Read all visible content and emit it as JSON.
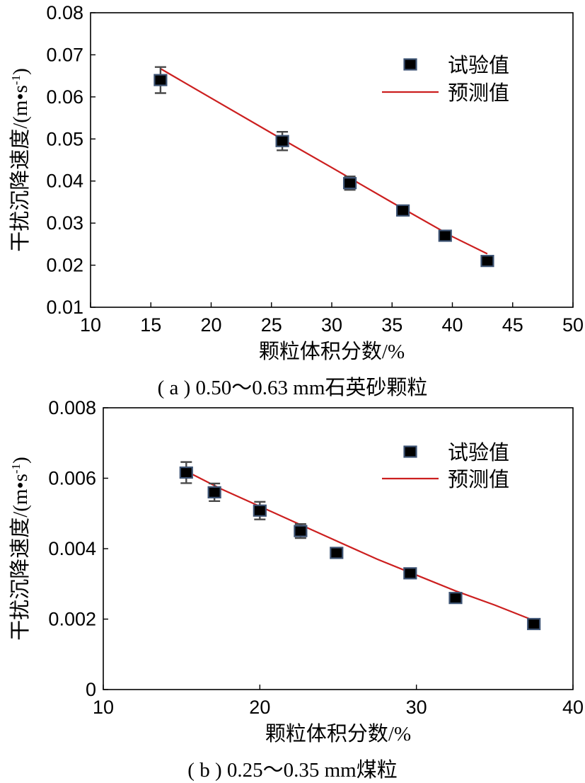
{
  "chart_data": [
    {
      "type": "scatter",
      "caption": "( a ) 0.50～0.63 mm石英砂颗粒",
      "xlabel": "颗粒体积分数/%",
      "ylabel": "干扰沉降速度/(m•s",
      "ylabel_sup": "-1",
      "ylabel_end": ")",
      "xlim": [
        10,
        50
      ],
      "ylim": [
        0.01,
        0.08
      ],
      "xticks": [
        10,
        15,
        20,
        25,
        30,
        35,
        40,
        45,
        50
      ],
      "yticks": [
        0.01,
        0.02,
        0.03,
        0.04,
        0.05,
        0.06,
        0.07,
        0.08
      ],
      "ytick_labels": [
        "0.01",
        "0.02",
        "0.03",
        "0.04",
        "0.05",
        "0.06",
        "0.07",
        "0.08"
      ],
      "legend": {
        "placement": "top-right",
        "marker_label": "试验值",
        "line_label": "预测值"
      },
      "series": [
        {
          "name": "试验值",
          "kind": "marker",
          "points": [
            {
              "x": 15.8,
              "y": 0.064,
              "err": 0.0031
            },
            {
              "x": 25.9,
              "y": 0.0495,
              "err": 0.0022
            },
            {
              "x": 31.5,
              "y": 0.0395,
              "err": 0.0016
            },
            {
              "x": 35.9,
              "y": 0.033,
              "err": 0.001
            },
            {
              "x": 39.4,
              "y": 0.027,
              "err": 0
            },
            {
              "x": 42.9,
              "y": 0.021,
              "err": 0
            }
          ]
        },
        {
          "name": "预测值",
          "kind": "line",
          "color": "#cc1f1f",
          "points": [
            {
              "x": 15.8,
              "y": 0.0667
            },
            {
              "x": 20.0,
              "y": 0.0597
            },
            {
              "x": 25.0,
              "y": 0.0514
            },
            {
              "x": 30.0,
              "y": 0.0432
            },
            {
              "x": 35.0,
              "y": 0.0349
            },
            {
              "x": 40.0,
              "y": 0.0268
            },
            {
              "x": 42.9,
              "y": 0.0227
            }
          ]
        }
      ]
    },
    {
      "type": "scatter",
      "caption": "( b ) 0.25～0.35 mm煤粒",
      "xlabel": "颗粒体积分数/%",
      "ylabel": "干扰沉降速度/(m•s",
      "ylabel_sup": "-1",
      "ylabel_end": ")",
      "xlim": [
        10,
        40
      ],
      "ylim": [
        0,
        0.008
      ],
      "xticks": [
        10,
        20,
        30,
        40
      ],
      "yticks": [
        0,
        0.002,
        0.004,
        0.006,
        0.008
      ],
      "ytick_labels": [
        "0",
        "0.002",
        "0.004",
        "0.006",
        "0.008"
      ],
      "legend": {
        "placement": "top-right",
        "marker_label": "试验值",
        "line_label": "预测值"
      },
      "series": [
        {
          "name": "试验值",
          "kind": "marker",
          "points": [
            {
              "x": 15.3,
              "y": 0.00616,
              "err": 0.0003
            },
            {
              "x": 17.1,
              "y": 0.0056,
              "err": 0.00025
            },
            {
              "x": 20.0,
              "y": 0.00508,
              "err": 0.00025
            },
            {
              "x": 22.6,
              "y": 0.0045,
              "err": 0.0002
            },
            {
              "x": 24.9,
              "y": 0.00388,
              "err": 0.0001
            },
            {
              "x": 29.6,
              "y": 0.0033,
              "err": 0
            },
            {
              "x": 32.5,
              "y": 0.0026,
              "err": 0
            },
            {
              "x": 37.5,
              "y": 0.00186,
              "err": 0
            }
          ]
        },
        {
          "name": "预测值",
          "kind": "line",
          "color": "#cc1f1f",
          "points": [
            {
              "x": 15.3,
              "y": 0.0062
            },
            {
              "x": 17.5,
              "y": 0.0057
            },
            {
              "x": 20.0,
              "y": 0.0052
            },
            {
              "x": 22.5,
              "y": 0.0047
            },
            {
              "x": 25.0,
              "y": 0.0042
            },
            {
              "x": 27.5,
              "y": 0.0037
            },
            {
              "x": 30.0,
              "y": 0.00325
            },
            {
              "x": 32.5,
              "y": 0.0028
            },
            {
              "x": 35.0,
              "y": 0.0024
            },
            {
              "x": 37.5,
              "y": 0.00196
            }
          ]
        }
      ]
    }
  ]
}
